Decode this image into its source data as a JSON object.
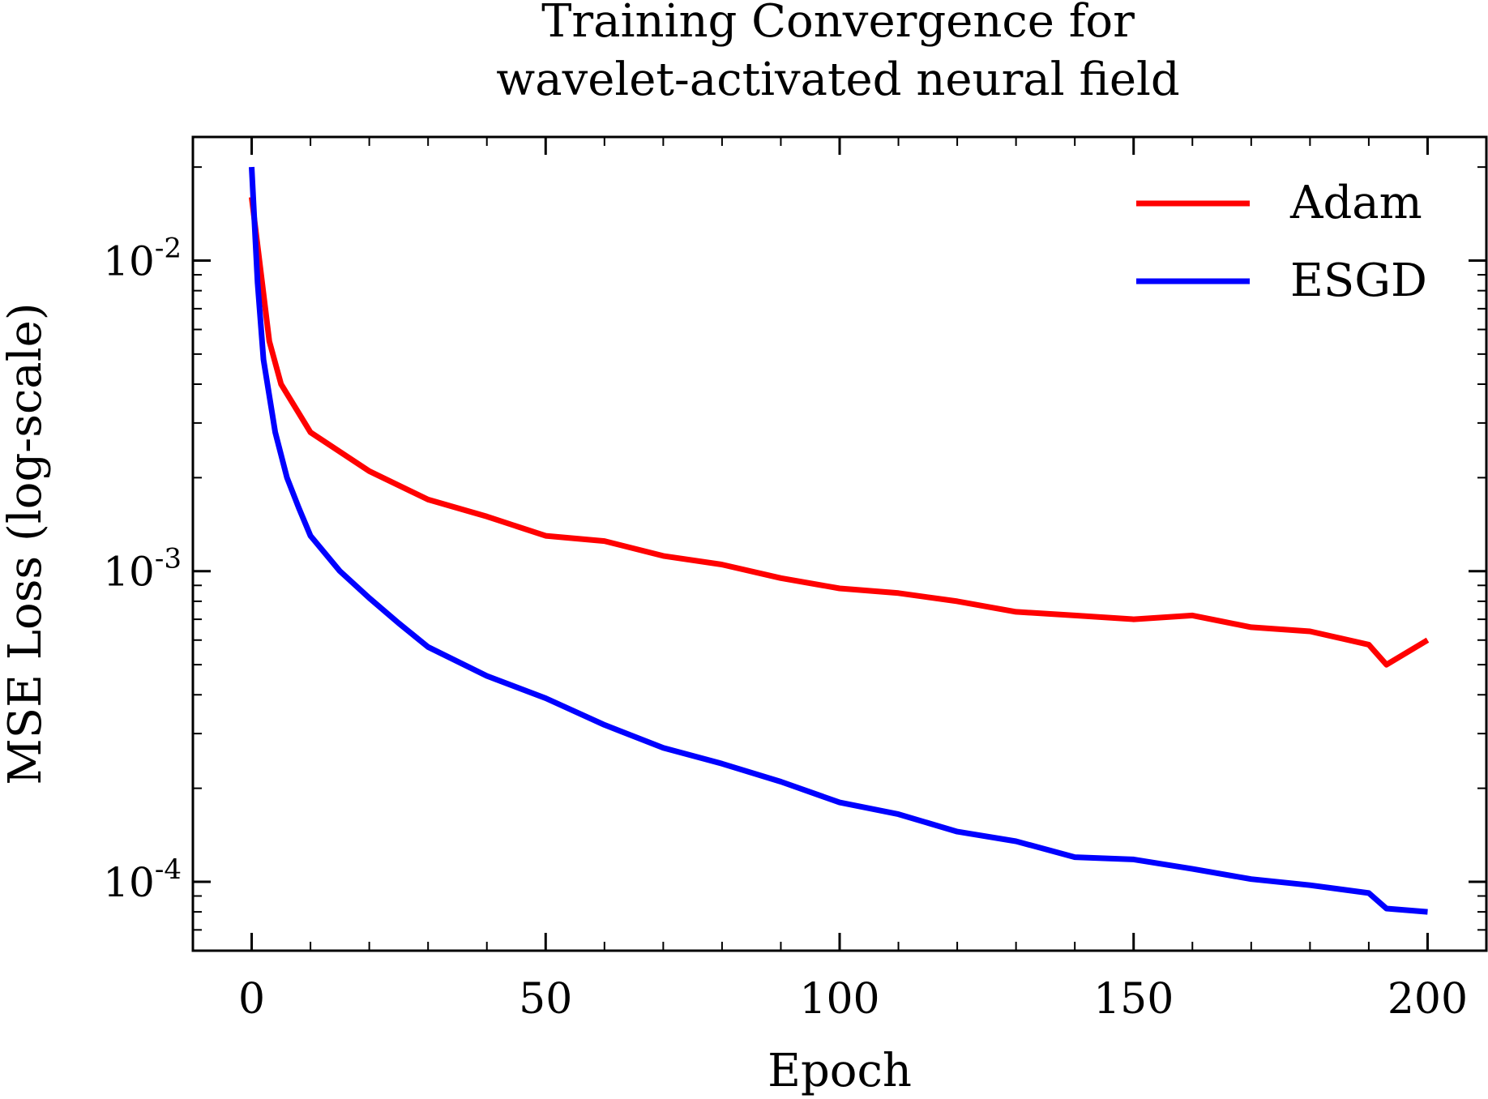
{
  "chart_data": {
    "type": "line",
    "title_lines": [
      "Training Convergence for",
      "wavelet-activated neural field"
    ],
    "xlabel": "Epoch",
    "ylabel": "MSE Loss (log-scale)",
    "xlim": [
      -10,
      210
    ],
    "ylim": [
      6e-05,
      0.025
    ],
    "yscale": "log",
    "xticks": [
      0,
      50,
      100,
      150,
      200
    ],
    "xtick_labels": [
      "0",
      "50",
      "100",
      "150",
      "200"
    ],
    "yticks": [
      0.0001,
      0.001,
      0.01
    ],
    "ytick_labels": [
      {
        "base": "10",
        "exp": "-4"
      },
      {
        "base": "10",
        "exp": "-3"
      },
      {
        "base": "10",
        "exp": "-2"
      }
    ],
    "legend_position": "top-right",
    "grid": false,
    "series": [
      {
        "name": "Adam",
        "color": "#ff0000",
        "x": [
          0,
          3,
          5,
          10,
          20,
          30,
          40,
          50,
          60,
          70,
          80,
          90,
          100,
          110,
          120,
          130,
          140,
          150,
          160,
          170,
          180,
          190,
          193,
          200
        ],
        "y": [
          0.016,
          0.0055,
          0.004,
          0.0028,
          0.0021,
          0.0017,
          0.0015,
          0.0013,
          0.00125,
          0.00112,
          0.00105,
          0.00095,
          0.00088,
          0.00085,
          0.0008,
          0.00074,
          0.00072,
          0.0007,
          0.00072,
          0.00066,
          0.00064,
          0.00058,
          0.0005,
          0.0006
        ]
      },
      {
        "name": "ESGD",
        "color": "#0000ff",
        "x": [
          0,
          1,
          2,
          4,
          6,
          8,
          10,
          15,
          20,
          25,
          30,
          40,
          50,
          60,
          70,
          80,
          90,
          100,
          110,
          120,
          130,
          140,
          150,
          160,
          170,
          180,
          190,
          193,
          200
        ],
        "y": [
          0.02,
          0.0085,
          0.0048,
          0.0028,
          0.002,
          0.0016,
          0.0013,
          0.001,
          0.00082,
          0.00068,
          0.00057,
          0.00046,
          0.00039,
          0.00032,
          0.00027,
          0.00024,
          0.00021,
          0.00018,
          0.000165,
          0.000145,
          0.000135,
          0.00012,
          0.000118,
          0.00011,
          0.000102,
          9.75e-05,
          9.2e-05,
          8.2e-05,
          8e-05
        ]
      }
    ]
  }
}
